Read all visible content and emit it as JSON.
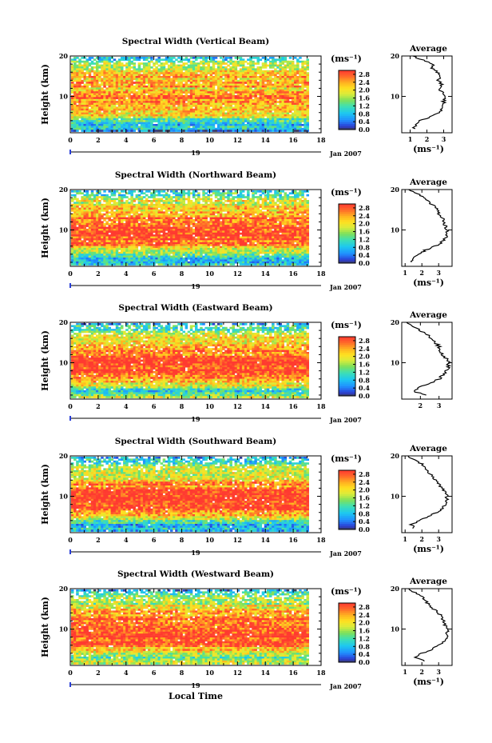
{
  "chart_data": [
    {
      "type": "heatmap",
      "title": "Spectral Width (Vertical Beam)",
      "ylabel": "Height (km)",
      "xlim": [
        0,
        18
      ],
      "ylim": [
        1,
        20
      ],
      "x_ticks": [
        "0",
        "2",
        "4",
        "6",
        "8",
        "10",
        "12",
        "14",
        "16",
        "18"
      ],
      "y_ticks": [
        "20",
        "10"
      ],
      "data_end_hour": 17,
      "date_day": "19",
      "date_label": "Jan 2007",
      "colorbar": {
        "unit": "(ms⁻¹)",
        "min": 0,
        "max": 3.0,
        "ticks": [
          "2.8",
          "2.4",
          "2.0",
          "1.6",
          "1.2",
          "0.8",
          "0.4",
          "0.0"
        ]
      },
      "profile": {
        "title": "Average",
        "xlabel": "(ms⁻¹)",
        "x_ticks": [
          "1",
          "2",
          "3"
        ],
        "y_ticks": [
          "20",
          "10"
        ],
        "xlim": [
          0.5,
          3.5
        ],
        "height": [
          2,
          3,
          4,
          5,
          6,
          7,
          8,
          9,
          10,
          11,
          12,
          13,
          14,
          15,
          16,
          17,
          18,
          19,
          20
        ],
        "value": [
          1.2,
          1.3,
          1.6,
          2.2,
          2.7,
          2.9,
          3.0,
          3.0,
          3.1,
          2.9,
          2.7,
          2.9,
          2.7,
          2.8,
          2.6,
          2.3,
          2.4,
          1.8,
          1.1
        ]
      }
    },
    {
      "type": "heatmap",
      "title": "Spectral Width (Northward Beam)",
      "ylabel": "Height (km)",
      "xlim": [
        0,
        18
      ],
      "ylim": [
        1,
        20
      ],
      "x_ticks": [
        "0",
        "2",
        "4",
        "6",
        "8",
        "10",
        "12",
        "14",
        "16",
        "18"
      ],
      "y_ticks": [
        "20",
        "10"
      ],
      "data_end_hour": 17,
      "date_day": "19",
      "date_label": "Jan 2007",
      "colorbar": {
        "unit": "(ms⁻¹)",
        "min": 0,
        "max": 3.0,
        "ticks": [
          "2.8",
          "2.4",
          "2.0",
          "1.6",
          "1.2",
          "0.8",
          "0.4",
          "0.0"
        ]
      },
      "profile": {
        "title": "Average",
        "xlabel": "(ms⁻¹)",
        "x_ticks": [
          "1",
          "2",
          "3"
        ],
        "y_ticks": [
          "20",
          "10"
        ],
        "xlim": [
          0.8,
          3.8
        ],
        "height": [
          2,
          3,
          4,
          5,
          6,
          7,
          8,
          9,
          10,
          11,
          12,
          13,
          14,
          15,
          16,
          17,
          18,
          19,
          20
        ],
        "value": [
          1.4,
          1.5,
          1.8,
          2.2,
          2.8,
          3.2,
          3.4,
          3.5,
          3.5,
          3.4,
          3.3,
          3.2,
          3.0,
          2.9,
          2.7,
          2.4,
          2.2,
          1.7,
          1.2
        ]
      }
    },
    {
      "type": "heatmap",
      "title": "Spectral Width (Eastward Beam)",
      "ylabel": "Height (km)",
      "xlim": [
        0,
        18
      ],
      "ylim": [
        1,
        20
      ],
      "x_ticks": [
        "0",
        "2",
        "4",
        "6",
        "8",
        "10",
        "12",
        "14",
        "16",
        "18"
      ],
      "y_ticks": [
        "20",
        "10"
      ],
      "data_end_hour": 17,
      "date_day": "19",
      "date_label": "Jan 2007",
      "colorbar": {
        "unit": "(ms⁻¹)",
        "min": 0,
        "max": 3.0,
        "ticks": [
          "2.8",
          "2.4",
          "2.0",
          "1.6",
          "1.2",
          "0.8",
          "0.4",
          "0.0"
        ]
      },
      "profile": {
        "title": "Average",
        "xlabel": "",
        "x_ticks": [
          "2",
          "3"
        ],
        "y_ticks": [
          "20",
          "10"
        ],
        "xlim": [
          1.0,
          3.7
        ],
        "height": [
          2,
          3,
          4,
          5,
          6,
          7,
          8,
          9,
          10,
          11,
          12,
          13,
          14,
          15,
          16,
          17,
          18,
          19,
          20
        ],
        "value": [
          2.4,
          1.6,
          2.0,
          2.6,
          3.0,
          3.2,
          3.4,
          3.5,
          3.5,
          3.4,
          3.2,
          3.1,
          3.0,
          2.8,
          2.6,
          2.4,
          2.0,
          1.6,
          1.3
        ]
      }
    },
    {
      "type": "heatmap",
      "title": "Spectral Width (Southward Beam)",
      "ylabel": "Height (km)",
      "xlim": [
        0,
        18
      ],
      "ylim": [
        1,
        20
      ],
      "x_ticks": [
        "0",
        "2",
        "4",
        "6",
        "8",
        "10",
        "12",
        "14",
        "16",
        "18"
      ],
      "y_ticks": [
        "20",
        "10"
      ],
      "data_end_hour": 17,
      "date_day": "19",
      "date_label": "Jan 2007",
      "colorbar": {
        "unit": "(ms⁻¹)",
        "min": 0,
        "max": 3.0,
        "ticks": [
          "2.8",
          "2.4",
          "2.0",
          "1.6",
          "1.2",
          "0.8",
          "0.4",
          "0.0"
        ]
      },
      "profile": {
        "title": "Average",
        "xlabel": "(ms⁻¹)",
        "x_ticks": [
          "1",
          "2",
          "3"
        ],
        "y_ticks": [
          "20",
          "10"
        ],
        "xlim": [
          0.8,
          3.8
        ],
        "height": [
          2,
          3,
          4,
          5,
          6,
          7,
          8,
          9,
          10,
          11,
          12,
          13,
          14,
          15,
          16,
          17,
          18,
          19,
          20
        ],
        "value": [
          1.5,
          1.4,
          1.9,
          2.4,
          2.9,
          3.2,
          3.4,
          3.5,
          3.5,
          3.4,
          3.2,
          3.0,
          2.8,
          2.6,
          2.4,
          2.2,
          2.0,
          1.6,
          1.2
        ]
      }
    },
    {
      "type": "heatmap",
      "title": "Spectral Width (Westward Beam)",
      "ylabel": "Height (km)",
      "xlabel": "Local Time",
      "xlim": [
        0,
        18
      ],
      "ylim": [
        1,
        20
      ],
      "x_ticks": [
        "0",
        "2",
        "4",
        "6",
        "8",
        "10",
        "12",
        "14",
        "16",
        "18"
      ],
      "y_ticks": [
        "20",
        "10"
      ],
      "data_end_hour": 17,
      "date_day": "19",
      "date_label": "Jan 2007",
      "colorbar": {
        "unit": "(ms⁻¹)",
        "min": 0,
        "max": 3.0,
        "ticks": [
          "2.8",
          "2.4",
          "2.0",
          "1.6",
          "1.2",
          "0.8",
          "0.4",
          "0.0"
        ]
      },
      "profile": {
        "title": "Average",
        "xlabel": "(ms⁻¹)",
        "x_ticks": [
          "1",
          "2",
          "3"
        ],
        "y_ticks": [
          "20",
          "10"
        ],
        "xlim": [
          0.8,
          3.8
        ],
        "height": [
          2,
          3,
          4,
          5,
          6,
          7,
          8,
          9,
          10,
          11,
          12,
          13,
          14,
          15,
          16,
          17,
          18,
          19,
          20
        ],
        "value": [
          2.2,
          1.6,
          2.0,
          2.6,
          3.0,
          3.3,
          3.5,
          3.5,
          3.5,
          3.4,
          3.3,
          3.2,
          3.0,
          2.7,
          2.4,
          2.2,
          2.0,
          1.6,
          1.2
        ]
      }
    }
  ]
}
